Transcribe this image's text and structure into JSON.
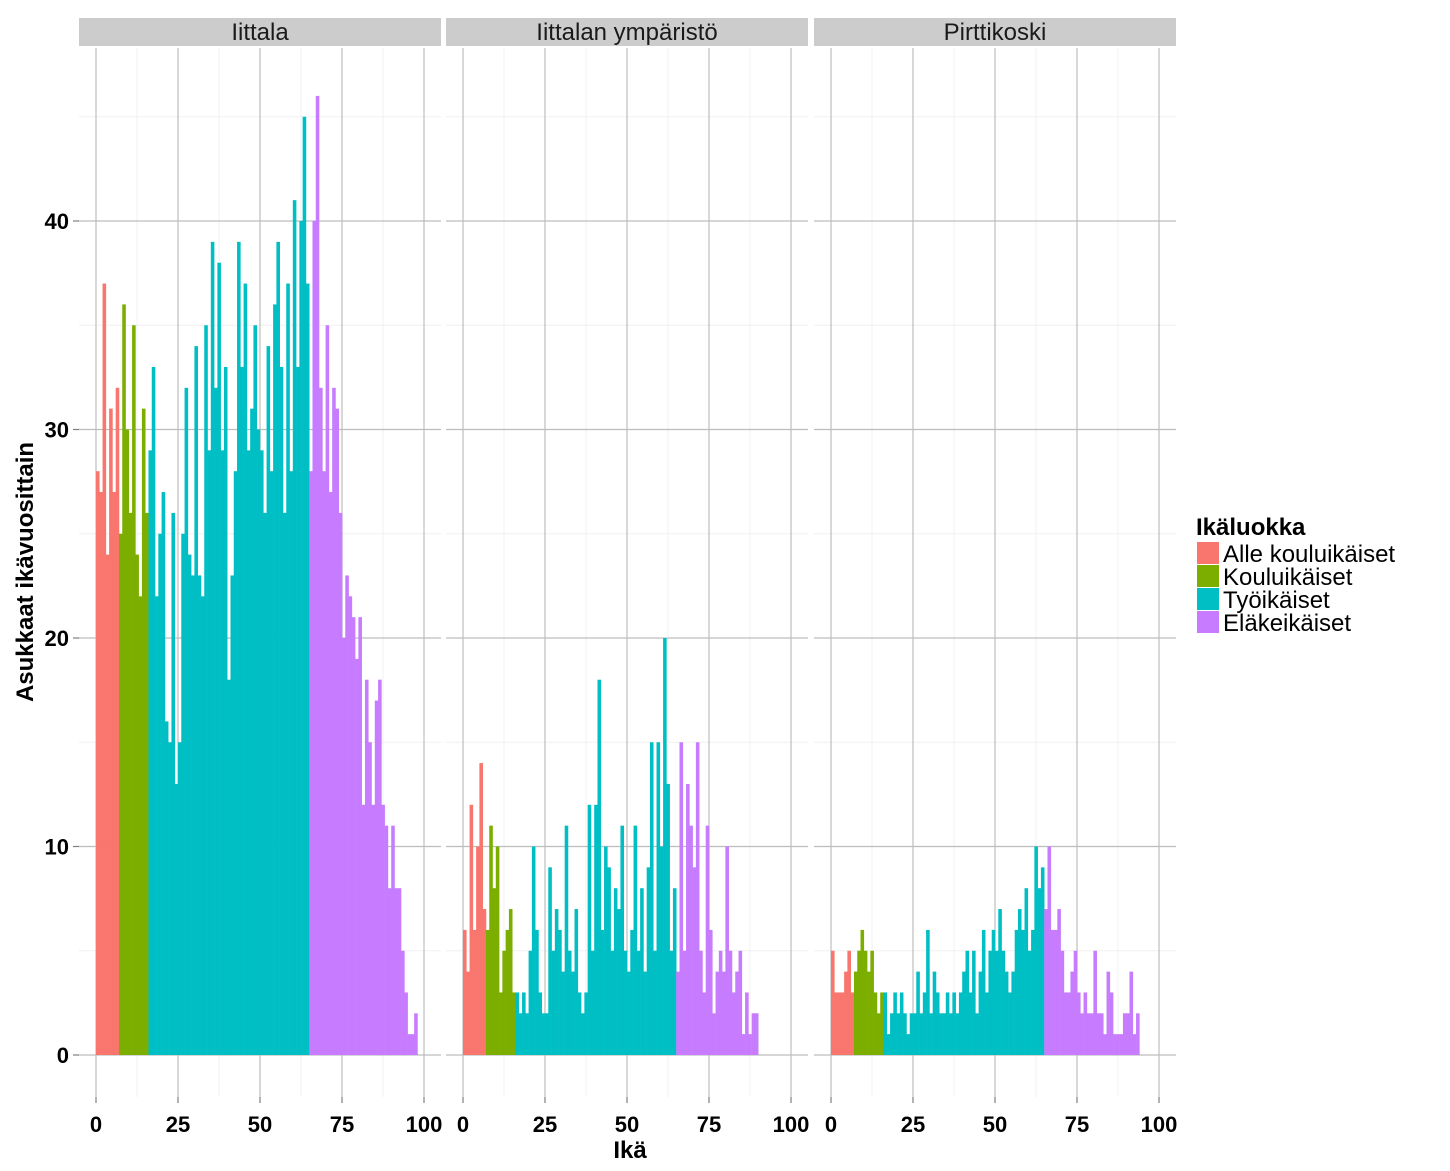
{
  "chart_data": {
    "type": "bar",
    "xlabel": "Ikä",
    "ylabel": "Asukkaat ikävuosittain",
    "xlim": [
      0,
      100
    ],
    "ylim": [
      0,
      50
    ],
    "x_ticks": [
      0,
      25,
      50,
      75,
      100
    ],
    "y_ticks": [
      0,
      10,
      20,
      30,
      40
    ],
    "grid": true,
    "legend": {
      "title": "Ikäluokka",
      "position": "right",
      "entries": [
        {
          "name": "Alle kouluikäiset",
          "color": "#F8766D"
        },
        {
          "name": "Kouluikäiset",
          "color": "#7CAE00"
        },
        {
          "name": "Työikäiset",
          "color": "#00BFC4"
        },
        {
          "name": "Eläkeikäiset",
          "color": "#C77CFF"
        }
      ]
    },
    "category_breaks": [
      7,
      16,
      65
    ],
    "panels": [
      {
        "title": "Iittala",
        "x_start": 0,
        "values": [
          28,
          27,
          37,
          24,
          31,
          27,
          32,
          25,
          36,
          30,
          26,
          35,
          24,
          22,
          31,
          26,
          29,
          33,
          22,
          25,
          27,
          16,
          15,
          26,
          13,
          15,
          25,
          32,
          24,
          23,
          34,
          23,
          22,
          35,
          29,
          39,
          32,
          38,
          29,
          33,
          18,
          23,
          28,
          39,
          33,
          37,
          29,
          31,
          35,
          30,
          29,
          26,
          34,
          28,
          36,
          39,
          33,
          26,
          37,
          28,
          41,
          33,
          40,
          45,
          37,
          28,
          40,
          46,
          32,
          28,
          35,
          27,
          32,
          31,
          26,
          20,
          23,
          22,
          21,
          19,
          21,
          12,
          18,
          15,
          12,
          17,
          18,
          12,
          11,
          8,
          11,
          8,
          8,
          5,
          3,
          1,
          1,
          2
        ]
      },
      {
        "title": "Iittalan ympäristö",
        "x_start": 0,
        "values": [
          6,
          4,
          12,
          6,
          10,
          14,
          7,
          6,
          11,
          8,
          10,
          3,
          5,
          6,
          7,
          3,
          3,
          2,
          3,
          2,
          5,
          10,
          6,
          3,
          2,
          2,
          9,
          5,
          7,
          6,
          4,
          11,
          5,
          4,
          7,
          3,
          2,
          3,
          12,
          5,
          12,
          18,
          6,
          10,
          9,
          5,
          8,
          7,
          11,
          5,
          4,
          6,
          11,
          5,
          8,
          4,
          9,
          15,
          5,
          15,
          10,
          20,
          13,
          5,
          8,
          4,
          15,
          5,
          13,
          11,
          9,
          15,
          5,
          3,
          11,
          6,
          2,
          4,
          5,
          4,
          10,
          5,
          3,
          4,
          5,
          1,
          3,
          1,
          2,
          2
        ]
      },
      {
        "title": "Pirttikoski",
        "x_start": 0,
        "values": [
          5,
          3,
          3,
          3,
          4,
          5,
          3,
          4,
          5,
          6,
          5,
          4,
          5,
          3,
          2,
          3,
          3,
          1,
          2,
          3,
          2,
          3,
          2,
          1,
          2,
          2,
          4,
          2,
          3,
          6,
          2,
          4,
          3,
          2,
          2,
          3,
          2,
          3,
          2,
          3,
          4,
          5,
          3,
          5,
          2,
          4,
          6,
          3,
          5,
          6,
          5,
          7,
          5,
          4,
          3,
          4,
          6,
          7,
          6,
          8,
          5,
          6,
          10,
          8,
          9,
          7,
          10,
          6,
          6,
          7,
          5,
          3,
          3,
          4,
          5,
          3,
          2,
          3,
          2,
          2,
          5,
          2,
          2,
          1,
          4,
          3,
          1,
          1,
          1,
          2,
          2,
          4,
          1,
          2
        ]
      }
    ]
  }
}
